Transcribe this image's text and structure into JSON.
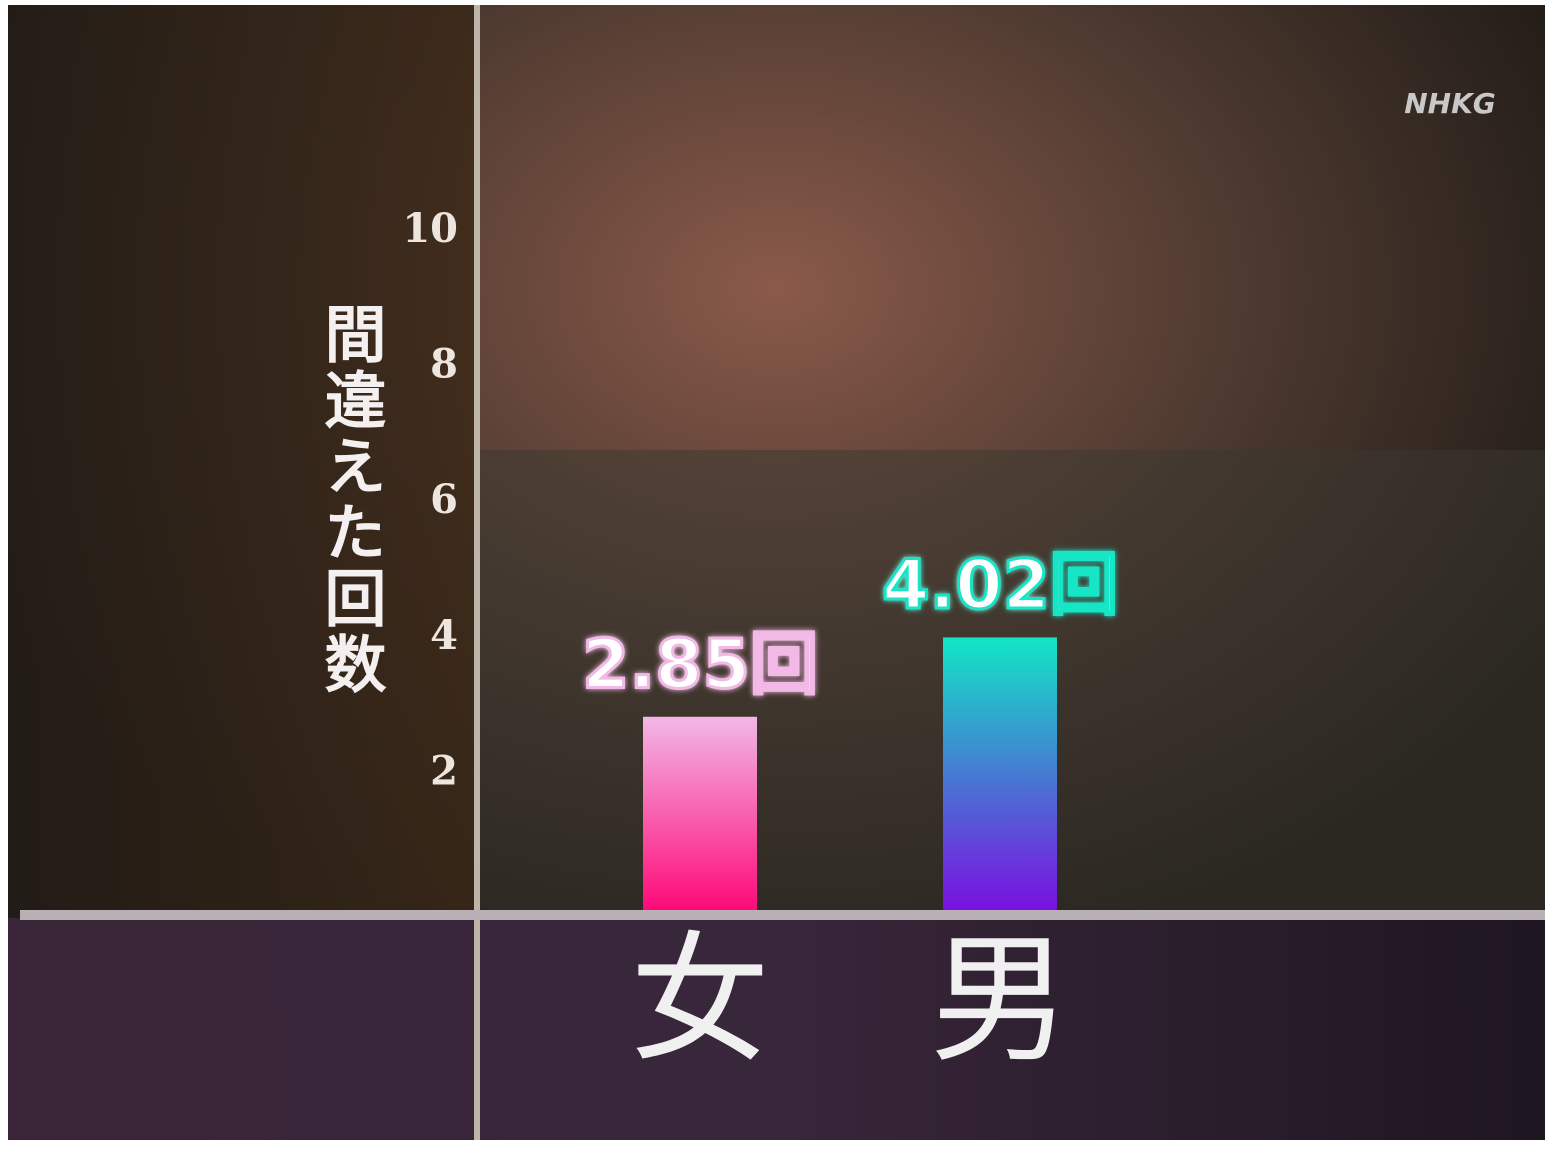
{
  "chart_data": {
    "type": "bar",
    "watermark": "NHKG",
    "y_label": "間違えた回数",
    "categories": [
      "女",
      "男"
    ],
    "values": [
      2.85,
      4.02
    ],
    "value_labels": [
      "2.85回",
      "4.02回"
    ],
    "colors": [
      [
        "#f2b8e6",
        "#ff0a78"
      ],
      [
        "#12e6c6",
        "#7a10e0"
      ]
    ],
    "ylim": [
      0,
      10
    ],
    "yticks": [
      2,
      4,
      6,
      8,
      10
    ]
  }
}
